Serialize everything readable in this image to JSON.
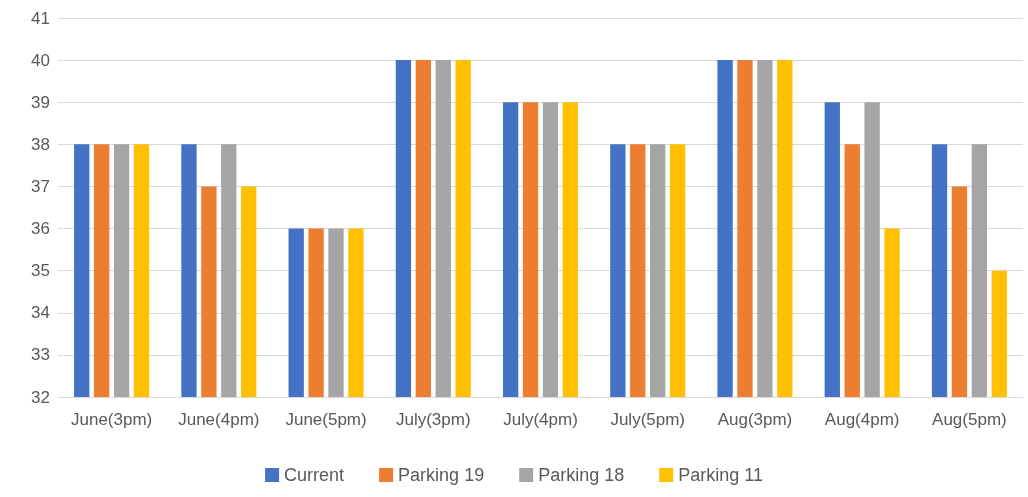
{
  "chart_data": {
    "type": "bar",
    "categories": [
      "June(3pm)",
      "June(4pm)",
      "June(5pm)",
      "July(3pm)",
      "July(4pm)",
      "July(5pm)",
      "Aug(3pm)",
      "Aug(4pm)",
      "Aug(5pm)"
    ],
    "series": [
      {
        "name": "Current",
        "color": "#4472c4",
        "values": [
          38,
          38,
          36,
          40,
          39,
          38,
          40,
          39,
          38
        ]
      },
      {
        "name": "Parking 19",
        "color": "#ed7d31",
        "values": [
          38,
          37,
          36,
          40,
          39,
          38,
          40,
          38,
          37
        ]
      },
      {
        "name": "Parking 18",
        "color": "#a5a5a5",
        "values": [
          38,
          38,
          36,
          40,
          39,
          38,
          40,
          39,
          38
        ]
      },
      {
        "name": "Parking 11",
        "color": "#ffc000",
        "values": [
          38,
          37,
          36,
          40,
          39,
          38,
          40,
          36,
          35
        ]
      }
    ],
    "ylim": [
      32,
      41
    ],
    "yticks": [
      32,
      33,
      34,
      35,
      36,
      37,
      38,
      39,
      40,
      41
    ],
    "grid": "y",
    "legend": "bottom"
  }
}
